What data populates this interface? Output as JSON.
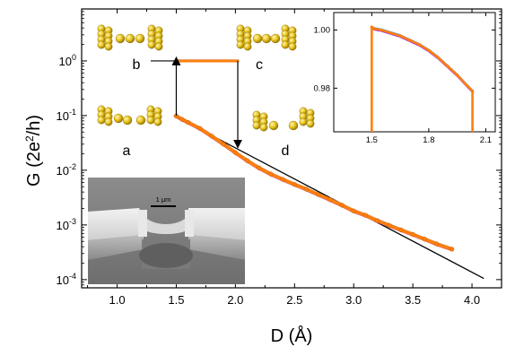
{
  "chart_data": [
    {
      "type": "scatter",
      "title": "",
      "xlabel": "D (Å)",
      "ylabel_parts": {
        "pre": "G (2e",
        "sup": "2",
        "post": "/h)"
      },
      "xlim": [
        0.7,
        4.25
      ],
      "ylim_log10": [
        -4.15,
        0.95
      ],
      "y_scale": "log",
      "x_ticks": [
        1.0,
        1.5,
        2.0,
        2.5,
        3.0,
        3.5,
        4.0
      ],
      "x_tick_labels": [
        "1.0",
        "1.5",
        "2.0",
        "2.5",
        "3.0",
        "3.5",
        "4.0"
      ],
      "y_tick_exponents": [
        -4,
        -3,
        -2,
        -1,
        0
      ],
      "y_tick_base": "10",
      "series": [
        {
          "role": "measured",
          "colors": [
            "#a020f0",
            "#1e90ff",
            "#ff7f0e"
          ],
          "plateau": {
            "x": [
              1.5,
              2.03
            ],
            "y": 1.0
          },
          "decay": {
            "x": [
              1.5,
              1.55,
              1.6,
              1.7,
              1.8,
              1.9,
              2.0,
              2.1,
              2.2,
              2.3,
              2.4,
              2.5,
              2.6,
              2.7,
              2.8,
              2.9,
              3.0,
              3.1,
              3.2,
              3.3,
              3.4,
              3.5,
              3.6,
              3.7,
              3.83
            ],
            "y": [
              0.098,
              0.085,
              0.075,
              0.058,
              0.042,
              0.03,
              0.021,
              0.015,
              0.011,
              0.0085,
              0.0068,
              0.0055,
              0.0045,
              0.0036,
              0.0029,
              0.0023,
              0.0018,
              0.0015,
              0.0012,
              0.00098,
              0.00081,
              0.00067,
              0.00055,
              0.00045,
              0.00036
            ]
          }
        },
        {
          "role": "fit",
          "color": "#000000",
          "x": [
            1.48,
            4.1
          ],
          "y": [
            0.1,
            0.000105
          ]
        }
      ],
      "arrows": [
        {
          "x": 1.5,
          "from_y": 0.1,
          "to_y": 1.0,
          "direction": "up"
        },
        {
          "x": 2.02,
          "from_y": 1.0,
          "to_y": 0.03,
          "direction": "down"
        }
      ],
      "configuration_labels": [
        "a",
        "b",
        "c",
        "d"
      ]
    },
    {
      "type": "scatter",
      "title": "",
      "inset": true,
      "xlim": [
        1.3,
        2.15
      ],
      "ylim": [
        0.965,
        1.006
      ],
      "x_ticks": [
        1.5,
        1.8,
        2.1
      ],
      "x_tick_labels": [
        "1.5",
        "1.8",
        "2.1"
      ],
      "y_ticks": [
        0.98,
        1.0
      ],
      "y_tick_labels": [
        "0.98",
        "1.00"
      ],
      "series": [
        {
          "colors": [
            "#a020f0",
            "#1e90ff",
            "#ff7f0e"
          ],
          "x": [
            1.5,
            1.51,
            1.55,
            1.6,
            1.65,
            1.7,
            1.75,
            1.8,
            1.85,
            1.9,
            1.95,
            2.0,
            2.03
          ],
          "y": [
            1.001,
            1.0005,
            1.0,
            0.999,
            0.998,
            0.9965,
            0.995,
            0.993,
            0.9905,
            0.9875,
            0.9845,
            0.981,
            0.979
          ]
        }
      ]
    }
  ],
  "micrograph": {
    "scale_bar_label": "1 μm"
  }
}
